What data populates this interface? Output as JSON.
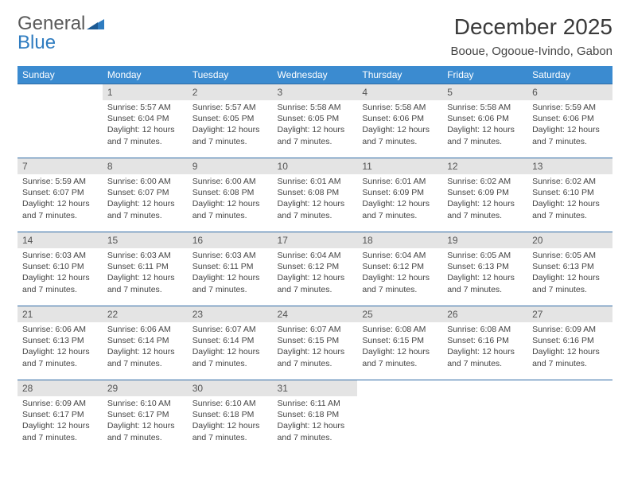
{
  "brand": {
    "word1": "General",
    "word2": "Blue"
  },
  "title": "December 2025",
  "location": "Booue, Ogooue-Ivindo, Gabon",
  "colors": {
    "header_bg": "#3b8bd0",
    "header_text": "#ffffff",
    "daynum_bg": "#e4e4e4",
    "rule": "#2e6aa5",
    "body_text": "#444444",
    "brand_gray": "#5a5a5a",
    "brand_blue": "#2f7cc0"
  },
  "days_of_week": [
    "Sunday",
    "Monday",
    "Tuesday",
    "Wednesday",
    "Thursday",
    "Friday",
    "Saturday"
  ],
  "weeks": [
    {
      "nums": [
        "",
        "1",
        "2",
        "3",
        "4",
        "5",
        "6"
      ],
      "cells": [
        null,
        {
          "sunrise": "Sunrise: 5:57 AM",
          "sunset": "Sunset: 6:04 PM",
          "day1": "Daylight: 12 hours",
          "day2": "and 7 minutes."
        },
        {
          "sunrise": "Sunrise: 5:57 AM",
          "sunset": "Sunset: 6:05 PM",
          "day1": "Daylight: 12 hours",
          "day2": "and 7 minutes."
        },
        {
          "sunrise": "Sunrise: 5:58 AM",
          "sunset": "Sunset: 6:05 PM",
          "day1": "Daylight: 12 hours",
          "day2": "and 7 minutes."
        },
        {
          "sunrise": "Sunrise: 5:58 AM",
          "sunset": "Sunset: 6:06 PM",
          "day1": "Daylight: 12 hours",
          "day2": "and 7 minutes."
        },
        {
          "sunrise": "Sunrise: 5:58 AM",
          "sunset": "Sunset: 6:06 PM",
          "day1": "Daylight: 12 hours",
          "day2": "and 7 minutes."
        },
        {
          "sunrise": "Sunrise: 5:59 AM",
          "sunset": "Sunset: 6:06 PM",
          "day1": "Daylight: 12 hours",
          "day2": "and 7 minutes."
        }
      ]
    },
    {
      "nums": [
        "7",
        "8",
        "9",
        "10",
        "11",
        "12",
        "13"
      ],
      "cells": [
        {
          "sunrise": "Sunrise: 5:59 AM",
          "sunset": "Sunset: 6:07 PM",
          "day1": "Daylight: 12 hours",
          "day2": "and 7 minutes."
        },
        {
          "sunrise": "Sunrise: 6:00 AM",
          "sunset": "Sunset: 6:07 PM",
          "day1": "Daylight: 12 hours",
          "day2": "and 7 minutes."
        },
        {
          "sunrise": "Sunrise: 6:00 AM",
          "sunset": "Sunset: 6:08 PM",
          "day1": "Daylight: 12 hours",
          "day2": "and 7 minutes."
        },
        {
          "sunrise": "Sunrise: 6:01 AM",
          "sunset": "Sunset: 6:08 PM",
          "day1": "Daylight: 12 hours",
          "day2": "and 7 minutes."
        },
        {
          "sunrise": "Sunrise: 6:01 AM",
          "sunset": "Sunset: 6:09 PM",
          "day1": "Daylight: 12 hours",
          "day2": "and 7 minutes."
        },
        {
          "sunrise": "Sunrise: 6:02 AM",
          "sunset": "Sunset: 6:09 PM",
          "day1": "Daylight: 12 hours",
          "day2": "and 7 minutes."
        },
        {
          "sunrise": "Sunrise: 6:02 AM",
          "sunset": "Sunset: 6:10 PM",
          "day1": "Daylight: 12 hours",
          "day2": "and 7 minutes."
        }
      ]
    },
    {
      "nums": [
        "14",
        "15",
        "16",
        "17",
        "18",
        "19",
        "20"
      ],
      "cells": [
        {
          "sunrise": "Sunrise: 6:03 AM",
          "sunset": "Sunset: 6:10 PM",
          "day1": "Daylight: 12 hours",
          "day2": "and 7 minutes."
        },
        {
          "sunrise": "Sunrise: 6:03 AM",
          "sunset": "Sunset: 6:11 PM",
          "day1": "Daylight: 12 hours",
          "day2": "and 7 minutes."
        },
        {
          "sunrise": "Sunrise: 6:03 AM",
          "sunset": "Sunset: 6:11 PM",
          "day1": "Daylight: 12 hours",
          "day2": "and 7 minutes."
        },
        {
          "sunrise": "Sunrise: 6:04 AM",
          "sunset": "Sunset: 6:12 PM",
          "day1": "Daylight: 12 hours",
          "day2": "and 7 minutes."
        },
        {
          "sunrise": "Sunrise: 6:04 AM",
          "sunset": "Sunset: 6:12 PM",
          "day1": "Daylight: 12 hours",
          "day2": "and 7 minutes."
        },
        {
          "sunrise": "Sunrise: 6:05 AM",
          "sunset": "Sunset: 6:13 PM",
          "day1": "Daylight: 12 hours",
          "day2": "and 7 minutes."
        },
        {
          "sunrise": "Sunrise: 6:05 AM",
          "sunset": "Sunset: 6:13 PM",
          "day1": "Daylight: 12 hours",
          "day2": "and 7 minutes."
        }
      ]
    },
    {
      "nums": [
        "21",
        "22",
        "23",
        "24",
        "25",
        "26",
        "27"
      ],
      "cells": [
        {
          "sunrise": "Sunrise: 6:06 AM",
          "sunset": "Sunset: 6:13 PM",
          "day1": "Daylight: 12 hours",
          "day2": "and 7 minutes."
        },
        {
          "sunrise": "Sunrise: 6:06 AM",
          "sunset": "Sunset: 6:14 PM",
          "day1": "Daylight: 12 hours",
          "day2": "and 7 minutes."
        },
        {
          "sunrise": "Sunrise: 6:07 AM",
          "sunset": "Sunset: 6:14 PM",
          "day1": "Daylight: 12 hours",
          "day2": "and 7 minutes."
        },
        {
          "sunrise": "Sunrise: 6:07 AM",
          "sunset": "Sunset: 6:15 PM",
          "day1": "Daylight: 12 hours",
          "day2": "and 7 minutes."
        },
        {
          "sunrise": "Sunrise: 6:08 AM",
          "sunset": "Sunset: 6:15 PM",
          "day1": "Daylight: 12 hours",
          "day2": "and 7 minutes."
        },
        {
          "sunrise": "Sunrise: 6:08 AM",
          "sunset": "Sunset: 6:16 PM",
          "day1": "Daylight: 12 hours",
          "day2": "and 7 minutes."
        },
        {
          "sunrise": "Sunrise: 6:09 AM",
          "sunset": "Sunset: 6:16 PM",
          "day1": "Daylight: 12 hours",
          "day2": "and 7 minutes."
        }
      ]
    },
    {
      "nums": [
        "28",
        "29",
        "30",
        "31",
        "",
        "",
        ""
      ],
      "cells": [
        {
          "sunrise": "Sunrise: 6:09 AM",
          "sunset": "Sunset: 6:17 PM",
          "day1": "Daylight: 12 hours",
          "day2": "and 7 minutes."
        },
        {
          "sunrise": "Sunrise: 6:10 AM",
          "sunset": "Sunset: 6:17 PM",
          "day1": "Daylight: 12 hours",
          "day2": "and 7 minutes."
        },
        {
          "sunrise": "Sunrise: 6:10 AM",
          "sunset": "Sunset: 6:18 PM",
          "day1": "Daylight: 12 hours",
          "day2": "and 7 minutes."
        },
        {
          "sunrise": "Sunrise: 6:11 AM",
          "sunset": "Sunset: 6:18 PM",
          "day1": "Daylight: 12 hours",
          "day2": "and 7 minutes."
        },
        null,
        null,
        null
      ]
    }
  ]
}
